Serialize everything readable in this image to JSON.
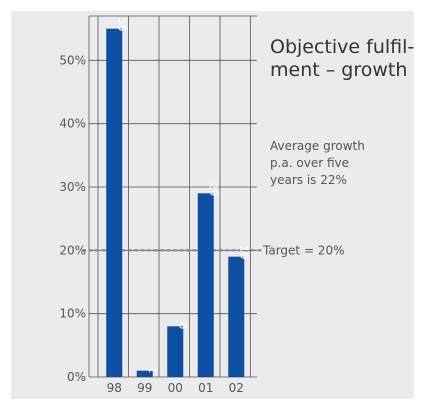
{
  "title_lines": [
    "Objective fulfil-",
    "ment – growth"
  ],
  "note_lines": [
    "Average growth",
    "p.a. over five",
    "years is 22%"
  ],
  "target_label": "Target = 20%",
  "colors": {
    "bar": "#0d4fa3",
    "target_line": "#888888",
    "panel": "#ebebeb"
  },
  "chart_data": {
    "type": "bar",
    "categories": [
      "98",
      "99",
      "00",
      "01",
      "02"
    ],
    "values": [
      55,
      1,
      8,
      29,
      19
    ],
    "value_labels": [
      "55",
      "1",
      "8",
      "29",
      "19"
    ],
    "y_ticks": [
      0,
      10,
      20,
      30,
      40,
      50
    ],
    "y_tick_labels": [
      "0%",
      "10%",
      "20%",
      "30%",
      "40%",
      "50%"
    ],
    "ylim": [
      0,
      57
    ],
    "target": 20,
    "grid": true
  }
}
